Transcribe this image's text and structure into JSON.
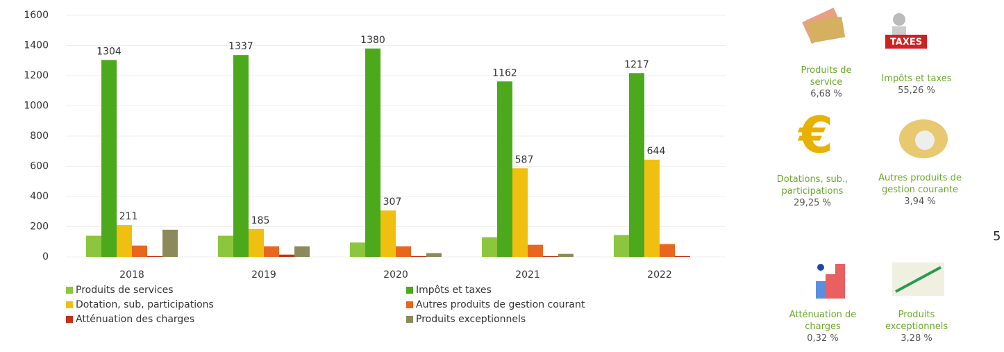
{
  "chart_data": {
    "type": "bar",
    "categories": [
      "2018",
      "2019",
      "2020",
      "2021",
      "2022"
    ],
    "series": [
      {
        "name": "Produits de services",
        "color": "#8cc63e",
        "values": [
          140,
          140,
          95,
          130,
          145
        ]
      },
      {
        "name": "Impôts et taxes",
        "color": "#4ca91c",
        "values": [
          1304,
          1337,
          1380,
          1162,
          1217
        ],
        "data_labels": true
      },
      {
        "name": "Dotation, sub, participations",
        "color": "#f0c010",
        "values": [
          211,
          185,
          307,
          587,
          644
        ],
        "data_labels": true
      },
      {
        "name": "Autres produits de gestion courant",
        "color": "#e8661e",
        "values": [
          75,
          70,
          70,
          80,
          85
        ]
      },
      {
        "name": "Atténuation des charges",
        "color": "#c0321a",
        "values": [
          5,
          15,
          5,
          5,
          5
        ]
      },
      {
        "name": "Produits exceptionnels",
        "color": "#8c8a5c",
        "values": [
          180,
          70,
          25,
          20,
          0
        ]
      }
    ],
    "ylim": [
      0,
      1600
    ],
    "yticks": [
      0,
      200,
      400,
      600,
      800,
      1000,
      1200,
      1400,
      1600
    ],
    "grid": true
  },
  "breakdown": {
    "items": [
      {
        "label": "Produits de service",
        "share": "6,68 %"
      },
      {
        "label": "Impôts et taxes",
        "share": "55,26 %"
      },
      {
        "label": "Dotations, sub., participations",
        "share": "29,25 %"
      },
      {
        "label": "Autres produits de gestion courante",
        "share": "3,94 %"
      },
      {
        "label": "Atténuation de charges",
        "share": "0,32 %"
      },
      {
        "label": "Produits exceptionnels",
        "share": "3,28 %"
      }
    ]
  },
  "page_number": "5"
}
